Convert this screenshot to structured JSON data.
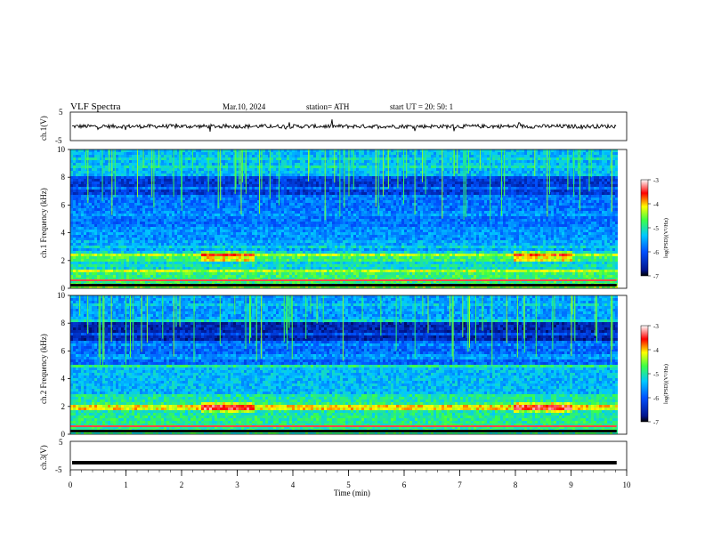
{
  "header": {
    "title": "VLF  Spectra",
    "date": "Mar.10, 2024",
    "station": "station= ATH",
    "start": "start  UT  =    20: 50: 1"
  },
  "colors": {
    "spectro_low": "#000000",
    "spectro_mid1": "#00148c",
    "spectro_mid2": "#00b4ff",
    "spectro_mid3": "#3cff46",
    "spectro_high": "#ff0000",
    "spectro_top": "#ffffff"
  },
  "chart_data": [
    {
      "type": "line",
      "panel": "ch1-voltage",
      "ylabel": "ch.1(V)",
      "ylim": [
        -5,
        5
      ],
      "yticks": [
        5,
        -5
      ],
      "series": [
        {
          "values": [
            0,
            0,
            0,
            0,
            0,
            0,
            0,
            0,
            0,
            0
          ]
        }
      ],
      "x": [
        0,
        1,
        2,
        3,
        4,
        5,
        6,
        7,
        8,
        9
      ]
    },
    {
      "type": "heatmap",
      "panel": "ch1-spectrogram",
      "ylabel": "ch.1 Frequency (kHz)",
      "ylim": [
        0,
        10
      ],
      "yticks": [
        0,
        2,
        4,
        6,
        8,
        10
      ],
      "colorbar": {
        "label": "log(PSD)(V²/Hz)",
        "range": [
          -7,
          -3
        ],
        "ticks": [
          -3,
          -4,
          -5,
          -6,
          -7
        ]
      }
    },
    {
      "type": "heatmap",
      "panel": "ch2-spectrogram",
      "ylabel": "ch.2 Frequency (kHz)",
      "ylim": [
        0,
        10
      ],
      "yticks": [
        0,
        2,
        4,
        6,
        8,
        10
      ],
      "colorbar": {
        "label": "log(PSD)(V²/Hz)",
        "range": [
          -7,
          -3
        ],
        "ticks": [
          -3,
          -4,
          -5,
          -6,
          -7
        ]
      }
    },
    {
      "type": "line",
      "panel": "ch3-voltage",
      "ylabel": "ch.3(V)",
      "ylim": [
        -5,
        5
      ],
      "yticks": [
        5,
        -5
      ],
      "series": [
        {
          "values": [
            -2.5,
            -2.5,
            -2.5,
            -2.5,
            -2.5,
            -2.5,
            -2.5,
            -2.5,
            -2.5,
            -2.5
          ]
        }
      ],
      "x": [
        0,
        1,
        2,
        3,
        4,
        5,
        6,
        7,
        8,
        9
      ]
    }
  ],
  "xaxis": {
    "label": "Time  (min)",
    "xlim": [
      0,
      10
    ],
    "ticks": [
      "0",
      "1",
      "2",
      "3",
      "4",
      "5",
      "6",
      "7",
      "8",
      "9",
      "10"
    ]
  }
}
